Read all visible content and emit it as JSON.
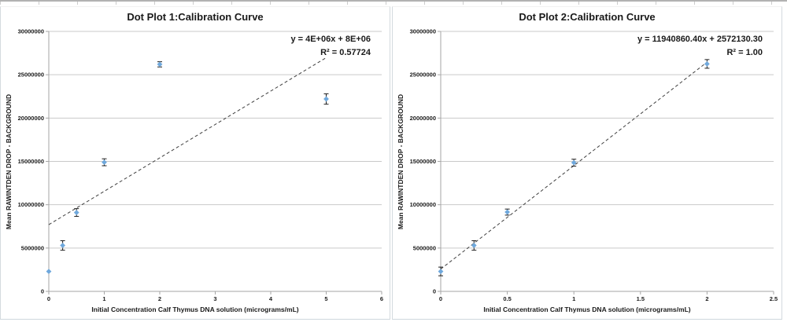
{
  "colors": {
    "marker": "#6FA8DC",
    "trendline": "#3F3F3F",
    "gridline": "#C9C9C9",
    "axis": "#A6A6A6",
    "error_bar": "#1F1F1F",
    "text": "#1A1A1A",
    "panel_border": "#D4DADE"
  },
  "chart_data": [
    {
      "type": "scatter",
      "title": "Dot Plot 1:Calibration Curve",
      "xlabel": "Initial Concentration Calf Thymus DNA solution (micrograms/mL)",
      "ylabel": "Mean RAWINTDEN DROP - BACKGROUND",
      "xlim": [
        0,
        6
      ],
      "ylim": [
        0,
        30000000
      ],
      "xticks": [
        0,
        1,
        2,
        3,
        4,
        5,
        6
      ],
      "yticks": [
        0,
        5000000,
        10000000,
        15000000,
        20000000,
        25000000,
        30000000
      ],
      "grid": "horizontal-only",
      "legend": "none",
      "annotation": [
        "y = 4E+06x + 8E+06",
        "R² = 0.57724"
      ],
      "series": [
        {
          "name": "calibration points with error bars",
          "marker": "diamond",
          "points": [
            {
              "x": 0,
              "y": 2300000,
              "err": 0
            },
            {
              "x": 0.25,
              "y": 5300000,
              "err": 550000
            },
            {
              "x": 0.5,
              "y": 9100000,
              "err": 450000
            },
            {
              "x": 1,
              "y": 14900000,
              "err": 400000
            },
            {
              "x": 2,
              "y": 26200000,
              "err": 300000
            },
            {
              "x": 5,
              "y": 22200000,
              "err": 600000
            }
          ]
        }
      ],
      "trendline": {
        "style": "dashed",
        "slope": 3854000,
        "intercept": 7700000,
        "x_start": 0,
        "x_end": 5
      }
    },
    {
      "type": "scatter",
      "title": "Dot Plot 2:Calibration Curve",
      "xlabel": "Initial Concentration Calf Thymus DNA solution (micrograms/mL)",
      "ylabel": "Mean RAWINTDEN DROP - BACKGROUND",
      "xlim": [
        0,
        2.5
      ],
      "ylim": [
        0,
        30000000
      ],
      "xticks": [
        0,
        0.5,
        1,
        1.5,
        2,
        2.5
      ],
      "yticks": [
        0,
        5000000,
        10000000,
        15000000,
        20000000,
        25000000,
        30000000
      ],
      "grid": "horizontal-only",
      "legend": "none",
      "annotation": [
        "y = 11940860.40x + 2572130.30",
        "R² = 1.00"
      ],
      "series": [
        {
          "name": "calibration points with error bars",
          "marker": "diamond",
          "points": [
            {
              "x": 0,
              "y": 2300000,
              "err": 500000
            },
            {
              "x": 0.25,
              "y": 5300000,
              "err": 550000
            },
            {
              "x": 0.5,
              "y": 9150000,
              "err": 350000
            },
            {
              "x": 1,
              "y": 14850000,
              "err": 400000
            },
            {
              "x": 2,
              "y": 26250000,
              "err": 500000
            }
          ]
        }
      ],
      "trendline": {
        "style": "dashed",
        "slope": 11940860.4,
        "intercept": 2572130.3,
        "x_start": 0,
        "x_end": 2
      }
    }
  ]
}
